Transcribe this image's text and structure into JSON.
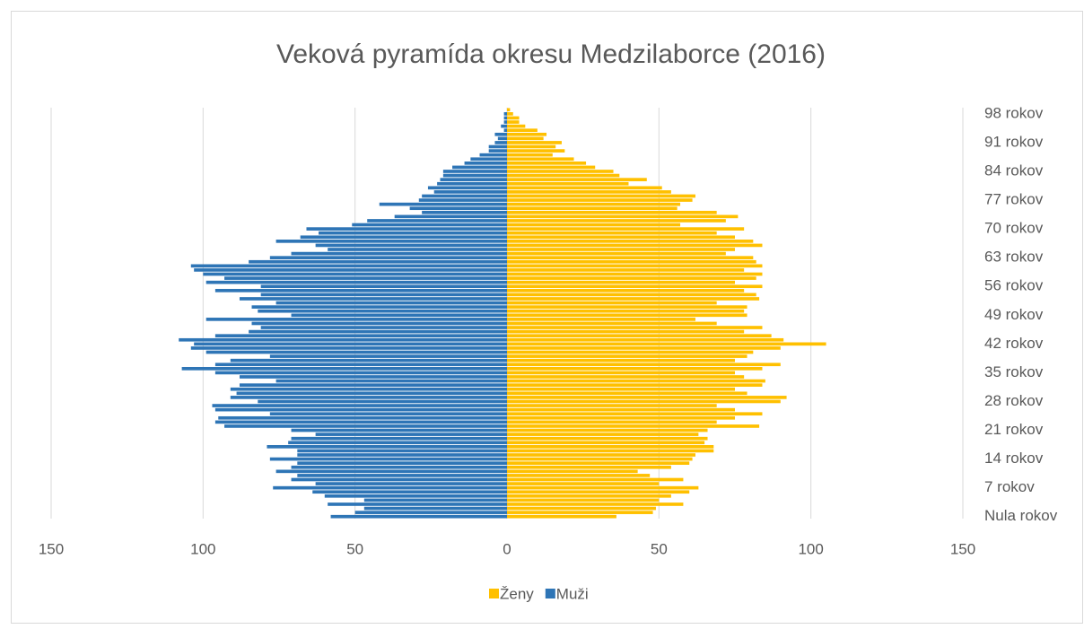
{
  "chart_data": {
    "type": "pyramid",
    "title": "Veková pyramída okresu Medzilaborce (2016)",
    "categories": [
      "Nula rokov",
      null,
      null,
      null,
      null,
      null,
      null,
      "7 rokov",
      null,
      null,
      null,
      null,
      null,
      null,
      "14 rokov",
      null,
      null,
      null,
      null,
      null,
      null,
      "21 rokov",
      null,
      null,
      null,
      null,
      null,
      null,
      "28 rokov",
      null,
      null,
      null,
      null,
      null,
      null,
      "35 rokov",
      null,
      null,
      null,
      null,
      null,
      null,
      "42 rokov",
      null,
      null,
      null,
      null,
      null,
      null,
      "49 rokov",
      null,
      null,
      null,
      null,
      null,
      null,
      "56 rokov",
      null,
      null,
      null,
      null,
      null,
      null,
      "63 rokov",
      null,
      null,
      null,
      null,
      null,
      null,
      "70 rokov",
      null,
      null,
      null,
      null,
      null,
      null,
      "77 rokov",
      null,
      null,
      null,
      null,
      null,
      null,
      "84 rokov",
      null,
      null,
      null,
      null,
      null,
      null,
      "91 rokov",
      null,
      null,
      null,
      null,
      null,
      null,
      "98 rokov",
      null
    ],
    "series": [
      {
        "name": "Ženy",
        "color": "#ffc000",
        "values": [
          36,
          48,
          49,
          58,
          50,
          54,
          60,
          63,
          50,
          58,
          47,
          43,
          54,
          60,
          61,
          62,
          68,
          68,
          65,
          66,
          63,
          66,
          83,
          69,
          75,
          84,
          75,
          69,
          90,
          92,
          79,
          75,
          84,
          85,
          78,
          75,
          84,
          90,
          75,
          79,
          81,
          90,
          105,
          91,
          87,
          78,
          84,
          69,
          62,
          79,
          78,
          79,
          69,
          83,
          82,
          78,
          84,
          75,
          82,
          84,
          78,
          84,
          82,
          81,
          72,
          75,
          84,
          81,
          75,
          69,
          78,
          57,
          72,
          76,
          69,
          56,
          57,
          61,
          62,
          54,
          51,
          40,
          46,
          37,
          35,
          29,
          26,
          22,
          15,
          19,
          16,
          18,
          12,
          13,
          10,
          6,
          4,
          4,
          2,
          1
        ]
      },
      {
        "name": "Muži",
        "color": "#2e75b6",
        "values": [
          -58,
          -50,
          -47,
          -59,
          -47,
          -60,
          -64,
          -77,
          -63,
          -71,
          -69,
          -76,
          -71,
          -69,
          -78,
          -69,
          -69,
          -79,
          -72,
          -71,
          -63,
          -71,
          -93,
          -96,
          -95,
          -78,
          -96,
          -97,
          -82,
          -91,
          -89,
          -91,
          -88,
          -76,
          -88,
          -96,
          -107,
          -96,
          -91,
          -78,
          -99,
          -104,
          -103,
          -108,
          -96,
          -85,
          -81,
          -84,
          -99,
          -71,
          -82,
          -84,
          -76,
          -88,
          -81,
          -96,
          -81,
          -99,
          -93,
          -100,
          -103,
          -104,
          -85,
          -78,
          -71,
          -59,
          -63,
          -76,
          -68,
          -62,
          -66,
          -51,
          -46,
          -37,
          -28,
          -32,
          -42,
          -29,
          -28,
          -24,
          -26,
          -23,
          -22,
          -21,
          -21,
          -18,
          -14,
          -12,
          -9,
          -6,
          -6,
          -4,
          -3,
          -4,
          -1,
          -2,
          -1,
          -1,
          -1,
          0
        ]
      }
    ],
    "xlim": [
      -150,
      150
    ],
    "xticks": [
      {
        "value": -150,
        "label": "150"
      },
      {
        "value": -100,
        "label": "100"
      },
      {
        "value": -50,
        "label": "50"
      },
      0,
      50,
      100,
      150
    ],
    "grid": true
  }
}
